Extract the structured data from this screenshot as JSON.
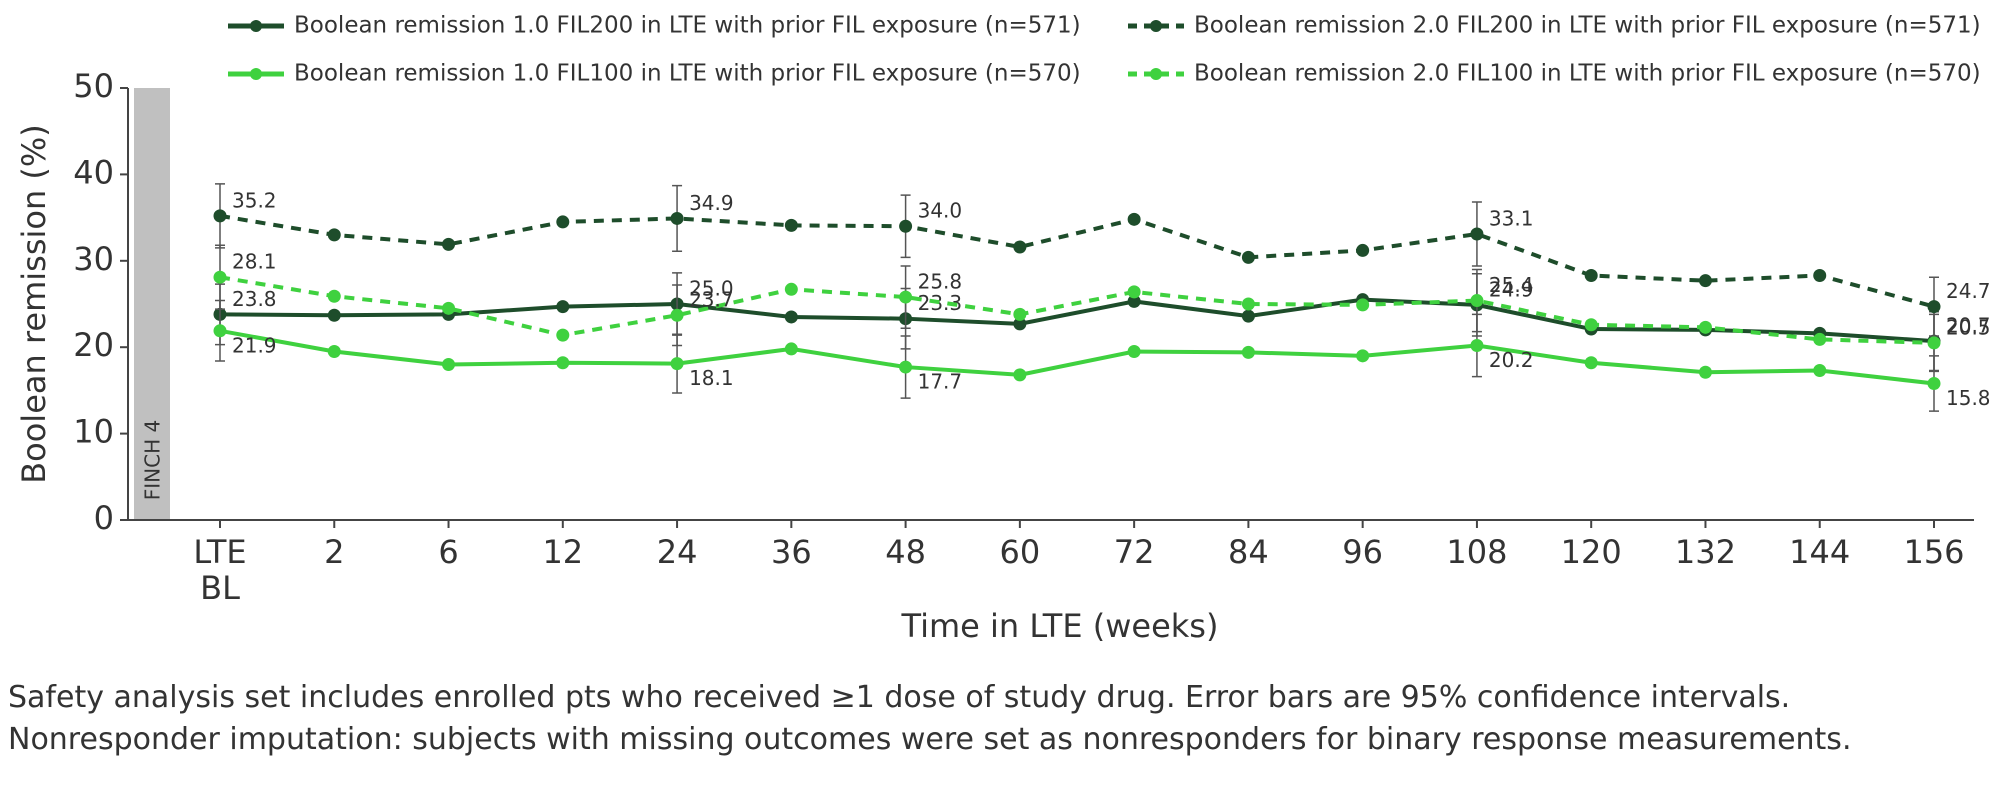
{
  "chart_data": {
    "type": "line",
    "y_label": "Boolean remission (%)",
    "x_label": "Time in LTE (weeks)",
    "band_label": "FINCH 4",
    "band_color": "#c0c0c0",
    "categories": [
      "LTE BL",
      "2",
      "6",
      "12",
      "24",
      "36",
      "48",
      "60",
      "72",
      "84",
      "96",
      "108",
      "120",
      "132",
      "144",
      "156"
    ],
    "ylim": [
      0,
      50
    ],
    "yticks": [
      0,
      10,
      20,
      30,
      40,
      50
    ],
    "series": [
      {
        "name": "Boolean remission 1.0 FIL200 in LTE with prior FIL exposure (n=571)",
        "color": "#1e4d2b",
        "dashed": false,
        "values": [
          23.8,
          23.7,
          23.8,
          24.7,
          25.0,
          23.5,
          23.3,
          22.7,
          25.3,
          23.6,
          25.5,
          24.9,
          22.1,
          22.0,
          21.6,
          20.7
        ],
        "value_labels": [
          "23.8",
          null,
          null,
          null,
          "25.0",
          null,
          "23.3",
          null,
          null,
          null,
          null,
          "24.9",
          null,
          null,
          null,
          "20.7"
        ],
        "errors": [
          3.5,
          null,
          null,
          null,
          3.6,
          null,
          3.5,
          null,
          null,
          null,
          null,
          3.6,
          null,
          null,
          null,
          3.4
        ]
      },
      {
        "name": "Boolean remission 1.0 FIL100 in LTE with prior FIL exposure (n=570)",
        "color": "#3fd13f",
        "dashed": false,
        "values": [
          21.9,
          19.5,
          18.0,
          18.2,
          18.1,
          19.8,
          17.7,
          16.8,
          19.5,
          19.4,
          19.0,
          20.2,
          18.2,
          17.1,
          17.3,
          15.8
        ],
        "value_labels": [
          "21.9",
          null,
          null,
          null,
          "18.1",
          null,
          "17.7",
          null,
          null,
          null,
          null,
          "20.2",
          null,
          null,
          null,
          "15.8"
        ],
        "errors": [
          3.5,
          null,
          null,
          null,
          3.4,
          null,
          3.6,
          null,
          null,
          null,
          null,
          3.6,
          null,
          null,
          null,
          3.2
        ]
      },
      {
        "name": "Boolean remission 2.0 FIL200 in LTE with prior FIL exposure (n=571)",
        "color": "#1e4d2b",
        "dashed": true,
        "values": [
          35.2,
          33.0,
          31.9,
          34.5,
          34.9,
          34.1,
          34.0,
          31.6,
          34.8,
          30.4,
          31.2,
          33.1,
          28.3,
          27.7,
          28.3,
          24.7
        ],
        "value_labels": [
          "35.2",
          null,
          null,
          null,
          "34.9",
          null,
          "34.0",
          null,
          null,
          null,
          null,
          "33.1",
          null,
          null,
          null,
          "24.7"
        ],
        "errors": [
          3.7,
          null,
          null,
          null,
          3.8,
          null,
          3.6,
          null,
          null,
          null,
          null,
          3.7,
          null,
          null,
          null,
          3.4
        ]
      },
      {
        "name": "Boolean remission 2.0 FIL100 in LTE with prior FIL exposure (n=570)",
        "color": "#3fd13f",
        "dashed": true,
        "values": [
          28.1,
          25.9,
          24.5,
          21.4,
          23.7,
          26.7,
          25.8,
          23.8,
          26.4,
          25.0,
          24.9,
          25.4,
          22.6,
          22.3,
          20.9,
          20.5
        ],
        "value_labels": [
          "28.1",
          null,
          null,
          null,
          "23.7",
          null,
          "25.8",
          null,
          null,
          null,
          null,
          "25.4",
          null,
          null,
          null,
          "20.5"
        ],
        "errors": [
          3.7,
          null,
          null,
          null,
          3.5,
          null,
          3.6,
          null,
          null,
          null,
          null,
          3.6,
          null,
          null,
          null,
          3.3
        ]
      }
    ],
    "notes": [
      "Safety analysis set includes enrolled pts who received ≥1 dose of study drug. Error bars are 95% confidence intervals.",
      "Nonresponder imputation: subjects with missing outcomes were set as nonresponders for binary response measurements."
    ]
  }
}
